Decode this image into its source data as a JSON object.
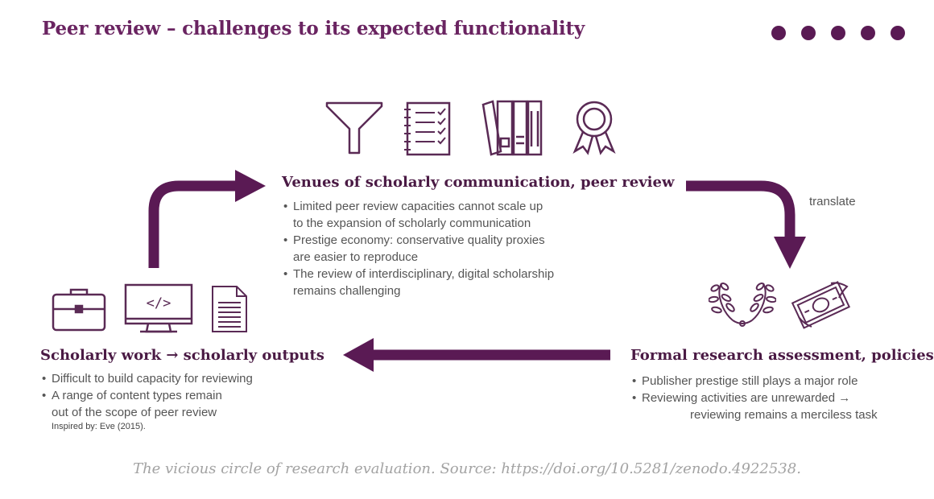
{
  "title": "Peer review – challenges to its expected functionality",
  "colors": {
    "accent": "#5a1a54",
    "text": "#4a1a44",
    "caption": "#a3a3a3"
  },
  "venues": {
    "heading": "Venues of scholarly communication, peer review",
    "bullets": [
      "Limited peer review capacities cannot scale up",
      "to the expansion of scholarly communication",
      "Prestige economy: conservative quality proxies",
      "are easier to reproduce",
      "The review of interdisciplinary, digital scholarship",
      "remains challenging"
    ],
    "icons": [
      "funnel-icon",
      "checklist-icon",
      "binders-icon",
      "award-ribbon-icon"
    ]
  },
  "work": {
    "heading": "Scholarly work → scholarly outputs",
    "bullets": [
      "Difficult to build capacity for reviewing",
      "A range of content types remain",
      "out of the scope of peer review"
    ],
    "note": "Inspired by: Eve (2015).",
    "icons": [
      "briefcase-icon",
      "code-monitor-icon",
      "document-icon"
    ]
  },
  "assessment": {
    "heading": "Formal research assessment, policies",
    "bullets": [
      "Publisher prestige still plays a major role",
      "Reviewing activities are unrewarded →",
      "reviewing remains a merciless task"
    ],
    "icons": [
      "laurel-wreath-icon",
      "money-icon"
    ]
  },
  "arrow_label": "translate",
  "caption": "The vicious circle of research evaluation. Source: https://doi.org/10.5281/zenodo.4922538."
}
